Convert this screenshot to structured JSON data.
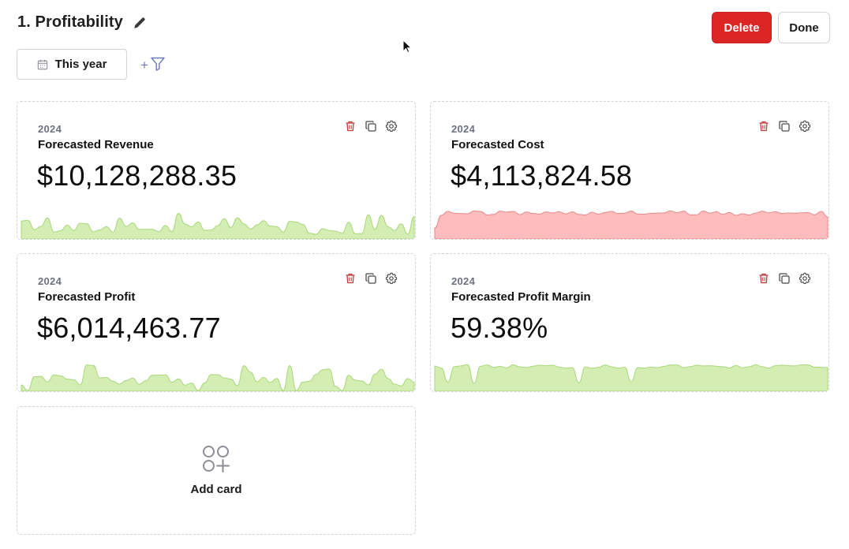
{
  "header": {
    "title": "1. Profitability",
    "delete_label": "Delete",
    "done_label": "Done"
  },
  "filters": {
    "date_label": "This year",
    "add_filter_symbol": "+"
  },
  "colors": {
    "delete": "#dc2626",
    "positive_fill": "#d3edb3",
    "positive_stroke": "#a9d97a",
    "negative_fill": "#ffbcbc",
    "negative_stroke": "#e78a8a",
    "filter_accent": "#6e77c4"
  },
  "cards": [
    {
      "year": "2024",
      "label": "Forecasted Revenue",
      "value": "$10,128,288.35",
      "trend": "positive"
    },
    {
      "year": "2024",
      "label": "Forecasted Cost",
      "value": "$4,113,824.58",
      "trend": "negative"
    },
    {
      "year": "2024",
      "label": "Forecasted Profit",
      "value": "$6,014,463.77",
      "trend": "positive"
    },
    {
      "year": "2024",
      "label": "Forecasted Profit Margin",
      "value": "59.38%",
      "trend": "positive"
    }
  ],
  "add_card": {
    "label": "Add card"
  },
  "icons": {
    "edit": "pencil-icon",
    "calendar": "calendar-icon",
    "filter": "filter-icon",
    "delete": "trash-icon",
    "duplicate": "copy-icon",
    "settings": "gear-icon",
    "add_card": "grid-plus-icon"
  }
}
